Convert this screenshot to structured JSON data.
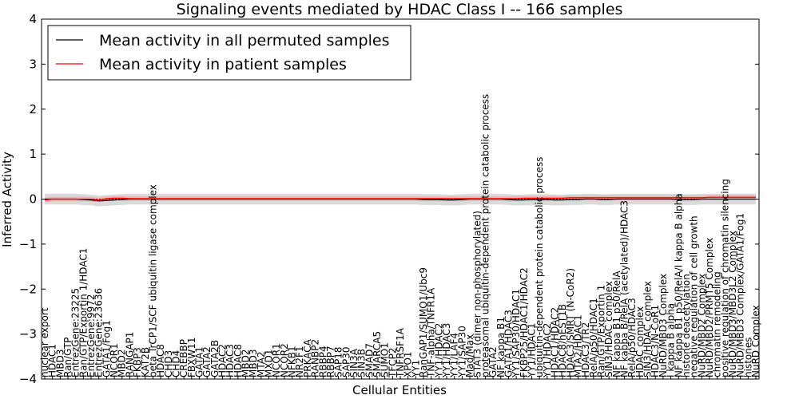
{
  "chart_data": {
    "type": "line",
    "title": "Signaling events mediated by HDAC Class I -- 166 samples",
    "xlabel": "Cellular Entities",
    "ylabel": "Inferred Activity",
    "ylim": [
      -4,
      4
    ],
    "yticks": [
      -4,
      -3,
      -2,
      -1,
      0,
      1,
      2,
      3,
      4
    ],
    "legend_position": "top-left",
    "categories": [
      "nuclear export",
      "HDAC1",
      "MBD3",
      "Ran/GTP",
      "EntrezGene:23225",
      "Ran/GTP/Exportin 1/HDAC1",
      "EntrezGene:9972",
      "EntrezGene:23636",
      "GATA1/Fog1",
      "NCOR1",
      "MBD2",
      "RANGAP1",
      "FKBP3",
      "KAT2B",
      "beta TrCP1/SCF ubiquitin ligase complex",
      "HDAC8",
      "CHD3",
      "CHD4",
      "CREBBP",
      "FBXW11",
      "GATA1",
      "GATA2",
      "GATA2B",
      "HDAC2",
      "HDAC3",
      "HDAC8",
      "MBD2",
      "MBD3",
      "MTA2",
      "MXD1",
      "NCOR1",
      "NCOR2",
      "NFKB1",
      "NR2F1",
      "PRKACA",
      "RANBP2",
      "RBBP4",
      "RBBP7",
      "SAP18",
      "SAP30",
      "SIN3A",
      "SIN3B",
      "SMAD7",
      "SMARCA5",
      "SUMO1",
      "TFCP2",
      "TNFRSF1A",
      "XPO1",
      "YY1",
      "RanGAP1/SUMO1/Ubc9",
      "TNF-alpha/TNFR1A",
      "YY1/HDAC2",
      "YY1/HDAC3",
      "YY1/LAF4",
      "YY1/SAP30",
      "Mad/Max",
      "STAT3 (dimer non-phosphorylated)",
      "proteasomal ubiquitin-dependent protein catabolic process",
      "GATA2",
      "NF kappa B1",
      "GATA1/HDAC3",
      "YY1/SAP30/HDAC1",
      "FKBP25/HDAC1/HDAC2",
      "YY1/HDAC1",
      "ubiquitin-dependent protein catabolic process",
      "YY1/HDAC2",
      "HDAC1/HDAC2",
      "HDAC8/hEST1B",
      "HDAC3/SMRT (N-CoR2)",
      "MTA2/HDAC1",
      "HDAC3/TR2",
      "RelA/p50/HDAC1",
      "Ran/GTP/Exportin 1",
      "SIN3/HDAC complex",
      "NF kappa B1 p50/RelA",
      "NF kappa B/RelA (acetylated)/HDAC3",
      "RelA/p50/HDAC3",
      "HDAC complex",
      "SIN3/HDAC complex",
      "HDAC3/N-CoR1",
      "NuRD/MBD3 Complex",
      "I kappa B alpha",
      "NF kappa B1 p50/RelA/I kappa B alpha",
      "histone deacetylation",
      "negative regulation of cell growth",
      "NuRD/MBD2 Complex",
      "NuRD/MBD2/PRMT5 Complex",
      "chromatin remodeling",
      "positive regulation of chromatin silencing",
      "NuRD/MBD3/MBD3L2 Complex",
      "NuRD/MBD3 Complex/GATA1/Fog1",
      "histones",
      "NuRD Complex"
    ],
    "series": [
      {
        "name": "Mean activity in all permuted samples",
        "color": "#000000",
        "values": [
          0,
          0,
          0,
          0,
          0,
          -0.01,
          -0.02,
          -0.04,
          -0.03,
          -0.02,
          -0.01,
          0,
          0,
          0,
          0,
          0,
          0,
          0,
          0,
          0,
          0,
          0,
          0,
          0,
          0,
          0,
          0,
          0,
          0,
          0,
          0,
          0,
          0,
          0,
          0,
          0,
          0,
          0,
          0,
          0,
          0,
          0,
          0,
          0,
          0,
          0,
          0,
          0,
          0,
          -0.01,
          -0.01,
          -0.01,
          -0.02,
          -0.02,
          -0.01,
          0,
          0,
          0,
          0,
          0,
          -0.01,
          -0.02,
          -0.02,
          -0.01,
          -0.01,
          -0.01,
          -0.02,
          -0.02,
          -0.01,
          -0.01,
          0,
          0,
          -0.01,
          -0.01,
          0,
          0,
          0,
          0,
          0,
          0,
          0,
          0,
          -0.01,
          -0.01,
          -0.01,
          0,
          0,
          0,
          0,
          0,
          0,
          0,
          0
        ]
      },
      {
        "name": "Mean activity in patient samples",
        "color": "#ff0000",
        "values": [
          -0.02,
          0,
          0,
          0,
          0,
          0,
          0,
          -0.02,
          0.01,
          0.02,
          0.02,
          0.01,
          0.01,
          0.01,
          0.01,
          0.01,
          0.01,
          0.01,
          0.01,
          0.01,
          0.01,
          0.01,
          0.01,
          0.01,
          0.01,
          0.01,
          0.01,
          0.01,
          0.01,
          0.01,
          0.01,
          0.01,
          0.01,
          0.01,
          0.01,
          0.01,
          0.01,
          0.01,
          0.01,
          0.01,
          0.01,
          0.01,
          0.01,
          0.01,
          0.01,
          0.01,
          0.01,
          0.01,
          0.01,
          0.01,
          0.01,
          0.01,
          0.01,
          0.01,
          0.01,
          0.01,
          0.01,
          0.01,
          0.01,
          0.01,
          0.01,
          0.01,
          0.02,
          0.02,
          0.02,
          0.02,
          0.02,
          0.02,
          0.03,
          0.03,
          0.03,
          0.03,
          0.03,
          0.03,
          0.03,
          0.03,
          0.03,
          0.03,
          0.03,
          0.03,
          0.03,
          0.03,
          0.03,
          0.03,
          0.03,
          0.03,
          0.04,
          0.04,
          0.04,
          0.04,
          0.04,
          0.04,
          0.04
        ]
      }
    ],
    "bands": [
      {
        "name": "permuted spread",
        "color": "#bbbbbb",
        "halfwidth": 0.12
      },
      {
        "name": "patient spread",
        "color": "#f4a0a0",
        "halfwidth": 0.05
      }
    ]
  }
}
